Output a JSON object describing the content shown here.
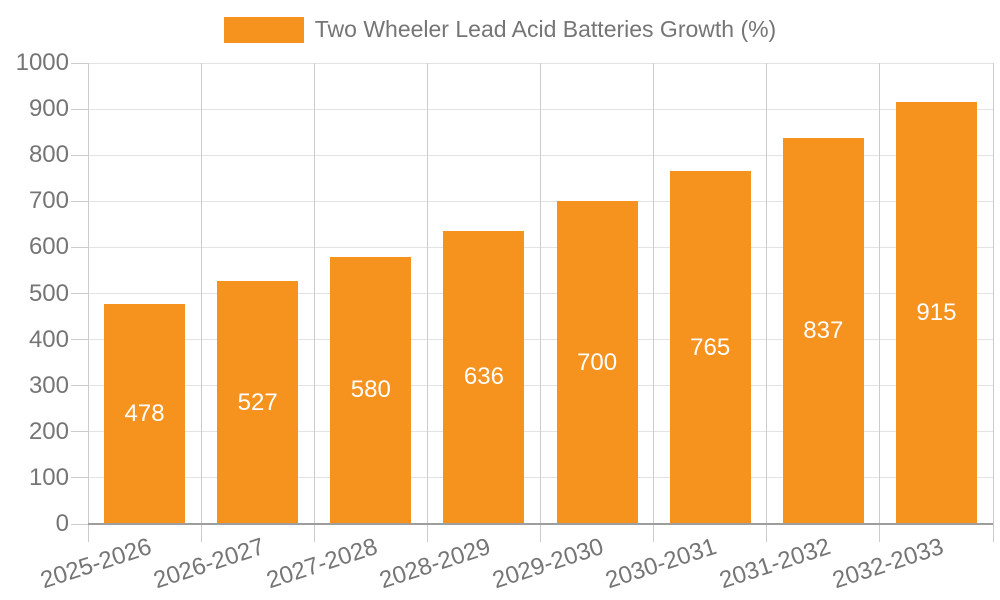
{
  "legend": {
    "label": "Two Wheeler Lead Acid Batteries Growth (%)"
  },
  "chart_data": {
    "type": "bar",
    "title": "Two Wheeler Lead Acid Batteries Growth (%)",
    "categories": [
      "2025-2026",
      "2026-2027",
      "2027-2028",
      "2028-2029",
      "2029-2030",
      "2030-2031",
      "2031-2032",
      "2032-2033"
    ],
    "values": [
      478,
      527,
      580,
      636,
      700,
      765,
      837,
      915
    ],
    "series": [
      {
        "name": "Two Wheeler Lead Acid Batteries Growth (%)",
        "values": [
          478,
          527,
          580,
          636,
          700,
          765,
          837,
          915
        ]
      }
    ],
    "xlabel": "",
    "ylabel": "",
    "ylim": [
      0,
      1000
    ],
    "ytick_step": 100,
    "grid": true,
    "legend_position": "top",
    "value_labels_position": "inside-center",
    "x_label_rotation_deg": -18,
    "colors": {
      "bar": "#F6921E",
      "value_label": "#FFFFFF",
      "axis_text": "#757575",
      "legend_text": "#757575",
      "hgrid": "#E3E3E3",
      "vgrid": "#CCCCCC",
      "tick": "#CCCCCC",
      "axis_line": "#9E9E9E",
      "background": "#FFFFFF"
    }
  }
}
